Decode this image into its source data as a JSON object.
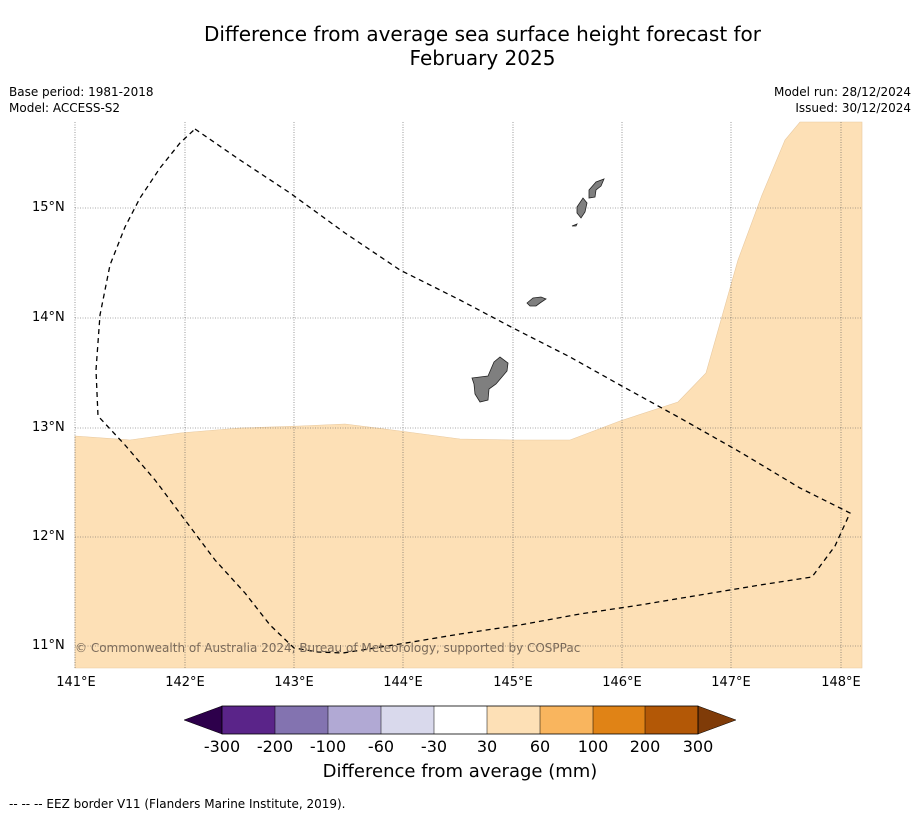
{
  "title": {
    "line1": "Difference from average sea surface height forecast for",
    "line2": "February 2025"
  },
  "meta_left": {
    "base_period": "Base period: 1981-2018",
    "model": "Model: ACCESS-S2"
  },
  "meta_right": {
    "model_run": "Model run: 28/12/2024",
    "issued": "Issued: 30/12/2024"
  },
  "map": {
    "lat_labels": [
      "15°N",
      "14°N",
      "13°N",
      "12°N",
      "11°N"
    ],
    "lon_labels": [
      "141°E",
      "142°E",
      "143°E",
      "144°E",
      "145°E",
      "146°E",
      "147°E",
      "148°E"
    ],
    "copyright": "© Commonwealth of Australia 2024, Bureau of Meteorology, supported by COSPPac",
    "field_color": "#fde0b6",
    "land_color": "#7f7f7f"
  },
  "colorbar": {
    "title": "Difference from average (mm)",
    "ticks": [
      "-300",
      "-200",
      "-100",
      "-60",
      "-30",
      "30",
      "60",
      "100",
      "200",
      "300"
    ],
    "colors": [
      "#5a2489",
      "#8373b0",
      "#b1a9d4",
      "#d9d9ec",
      "#ffffff",
      "#fde0b6",
      "#f9b55e",
      "#e08316",
      "#b35806"
    ],
    "low_extend_color": "#2d004b",
    "high_extend_color": "#7f3b08"
  },
  "footer": "--  --  -- EEZ border V11 (Flanders Marine Institute, 2019)."
}
